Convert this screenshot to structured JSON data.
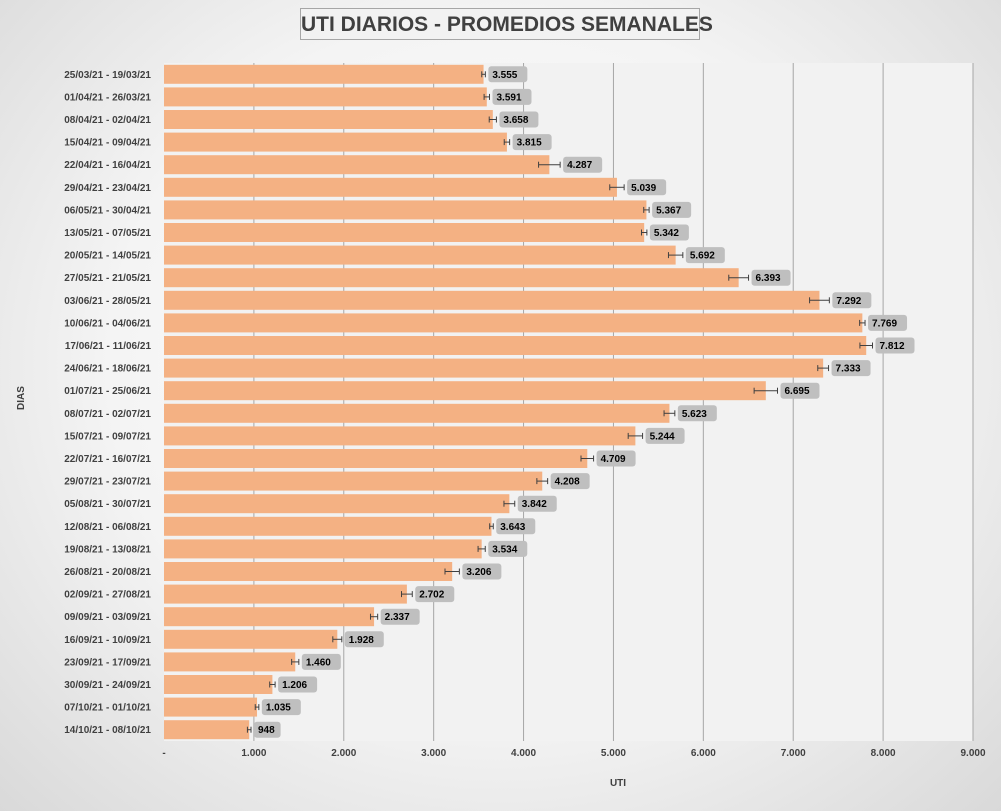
{
  "chart_data": {
    "type": "bar",
    "orientation": "horizontal",
    "title": "UTI DIARIOS - PROMEDIOS SEMANALES",
    "xlabel": "UTI",
    "ylabel": "DIAS",
    "xlim": [
      0,
      9000
    ],
    "x_ticks": [
      "-",
      "1.000",
      "2.000",
      "3.000",
      "4.000",
      "5.000",
      "6.000",
      "7.000",
      "8.000",
      "9.000"
    ],
    "grid": "vertical",
    "colors": {
      "bar": "#f4b183",
      "label_bg": "#bfbfbf",
      "grid": "#a6a6a6",
      "plot_bg": "#f2f2f2"
    },
    "categories": [
      "25/03/21 - 19/03/21",
      "01/04/21 - 26/03/21",
      "08/04/21 - 02/04/21",
      "15/04/21 - 09/04/21",
      "22/04/21 - 16/04/21",
      "29/04/21 - 23/04/21",
      "06/05/21 - 30/04/21",
      "13/05/21 - 07/05/21",
      "20/05/21 - 14/05/21",
      "27/05/21 - 21/05/21",
      "03/06/21 - 28/05/21",
      "10/06/21 - 04/06/21",
      "17/06/21 - 11/06/21",
      "24/06/21 - 18/06/21",
      "01/07/21 - 25/06/21",
      "08/07/21 - 02/07/21",
      "15/07/21 - 09/07/21",
      "22/07/21 - 16/07/21",
      "29/07/21 - 23/07/21",
      "05/08/21 - 30/07/21",
      "12/08/21 - 06/08/21",
      "19/08/21 - 13/08/21",
      "26/08/21 - 20/08/21",
      "02/09/21 - 27/08/21",
      "09/09/21 - 03/09/21",
      "16/09/21 - 10/09/21",
      "23/09/21 - 17/09/21",
      "30/09/21 - 24/09/21",
      "07/10/21 - 01/10/21",
      "14/10/21 - 08/10/21"
    ],
    "values": [
      3555,
      3591,
      3658,
      3815,
      4287,
      5039,
      5367,
      5342,
      5692,
      6393,
      7292,
      7769,
      7812,
      7333,
      6695,
      5623,
      5244,
      4709,
      4208,
      3842,
      3643,
      3534,
      3206,
      2702,
      2337,
      1928,
      1460,
      1206,
      1035,
      948
    ],
    "data_labels": [
      "3.555",
      "3.591",
      "3.658",
      "3.815",
      "4.287",
      "5.039",
      "5.367",
      "5.342",
      "5.692",
      "6.393",
      "7.292",
      "7.769",
      "7.812",
      "7.333",
      "6.695",
      "5.623",
      "5.244",
      "4.709",
      "4.208",
      "3.842",
      "3.643",
      "3.534",
      "3.206",
      "2.702",
      "2.337",
      "1.928",
      "1.460",
      "1.206",
      "1.035",
      "948"
    ],
    "error_bars": [
      20,
      30,
      40,
      30,
      120,
      80,
      30,
      30,
      80,
      110,
      110,
      30,
      70,
      60,
      130,
      60,
      80,
      70,
      60,
      60,
      20,
      40,
      80,
      60,
      40,
      50,
      40,
      30,
      20,
      20
    ]
  }
}
